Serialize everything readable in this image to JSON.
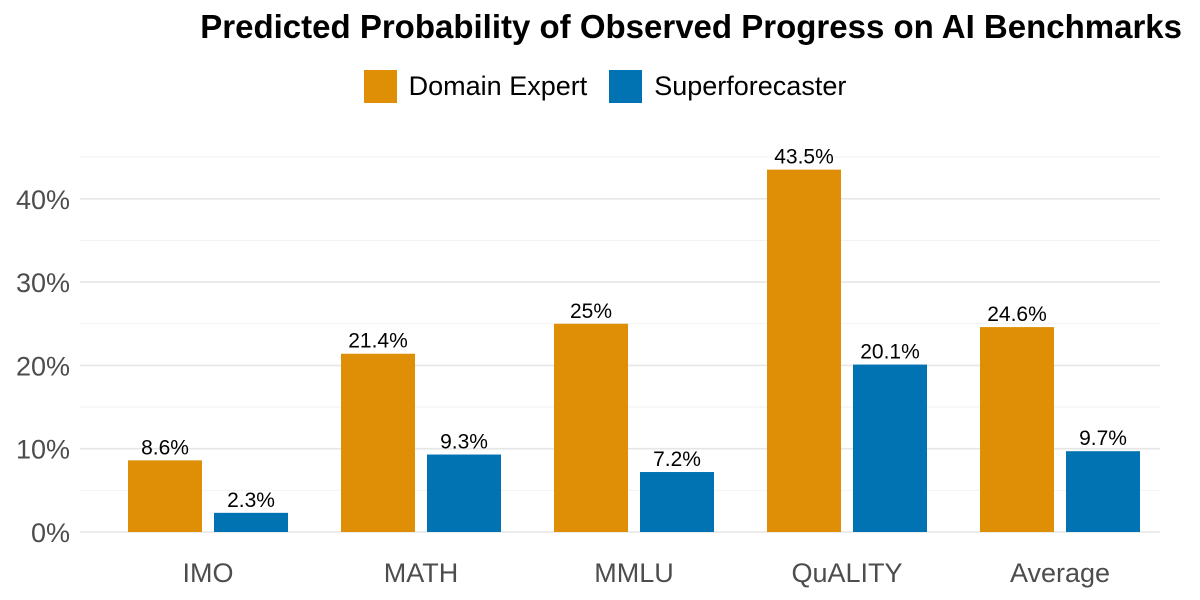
{
  "chart_data": {
    "type": "bar",
    "title": "Predicted Probability of Observed Progress on AI Benchmarks",
    "xlabel": "",
    "ylabel": "",
    "categories": [
      "IMO",
      "MATH",
      "MMLU",
      "QuALITY",
      "Average"
    ],
    "series": [
      {
        "name": "Domain Expert",
        "color": "#DE8F05",
        "values": [
          8.6,
          21.4,
          25,
          43.5,
          24.6
        ],
        "labels": [
          "8.6%",
          "21.4%",
          "25%",
          "43.5%",
          "24.6%"
        ]
      },
      {
        "name": "Superforecaster",
        "color": "#0173B2",
        "values": [
          2.3,
          9.3,
          7.2,
          20.1,
          9.7
        ],
        "labels": [
          "2.3%",
          "9.3%",
          "7.2%",
          "20.1%",
          "9.7%"
        ]
      }
    ],
    "ylim": [
      0,
      45
    ],
    "yticks": [
      0,
      10,
      20,
      30,
      40
    ],
    "ytick_labels": [
      "0%",
      "10%",
      "20%",
      "30%",
      "40%"
    ],
    "grid": true,
    "legend_position": "top"
  }
}
